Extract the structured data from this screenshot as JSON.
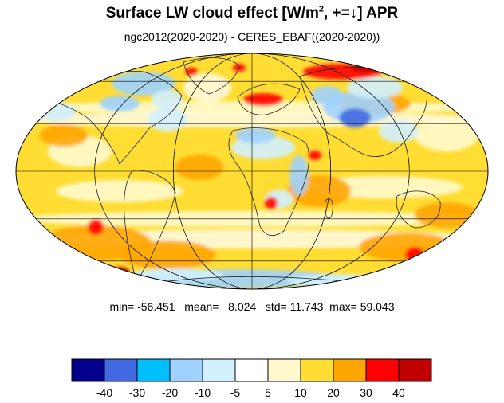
{
  "title": {
    "prefix": "Surface LW cloud effect [W/m",
    "sup": "2",
    "suffix": ", +=↓]  APR"
  },
  "subtitle": "ngc2012(2020-2020) - CERES_EBAF((2020-2020))",
  "stats": {
    "min_label": "min=",
    "min": "-56.451",
    "mean_label": "mean=",
    "mean": "8.024",
    "std_label": "std=",
    "std": "11.743",
    "max_label": "max=",
    "max": "59.043"
  },
  "colorbar": {
    "colors": [
      "#00008b",
      "#4169e1",
      "#00bfff",
      "#a0d2ff",
      "#d2f0ff",
      "#ffffff",
      "#fffacd",
      "#ffdd33",
      "#ffa500",
      "#ff0000",
      "#c00000"
    ],
    "labels": [
      "-40",
      "-30",
      "-20",
      "-10",
      "-5",
      "5",
      "10",
      "20",
      "30",
      "40"
    ]
  },
  "map": {
    "projection": "Mollweide",
    "ocean_base_color": "#ffdd33",
    "grid_color": "#000000"
  }
}
